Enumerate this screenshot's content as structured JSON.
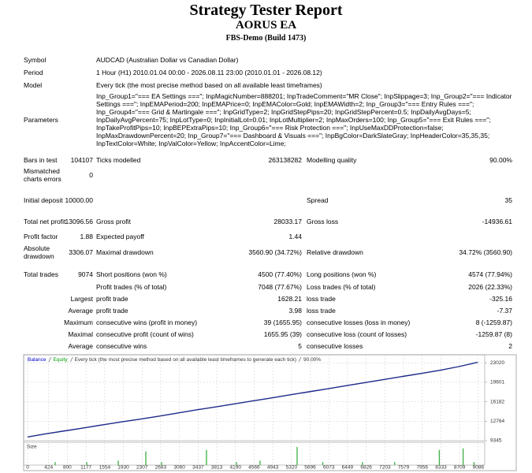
{
  "header": {
    "title": "Strategy Tester Report",
    "subtitle": "AORUS EA",
    "server": "FBS-Demo (Build 1473)"
  },
  "info": [
    {
      "label": "Symbol",
      "value": "AUDCAD (Australian Dollar vs Canadian Dollar)"
    },
    {
      "label": "Period",
      "value": "1 Hour (H1) 2010.01.04 00:00 - 2026.08.11 23:00 (2010.01.01 - 2026.08.12)"
    },
    {
      "label": "Model",
      "value": "Every tick (the most precise method based on all available least timeframes)"
    },
    {
      "label": "Parameters",
      "value": "Inp_Group1=\"=== EA Settings ===\"; InpMagicNumber=888201; InpTradeComment=\"MR Close\"; InpSlippage=3; Inp_Group2=\"=== Indicator Settings ===\"; InpEMAPeriod=200; InpEMAPrice=0; InpEMAColor=Gold; InpEMAWidth=2; Inp_Group3=\"=== Entry Rules ===\"; Inp_Group4=\"=== Grid & Martingale ===\"; InpGridType=2; InpGridStepPips=20; InpGridStepPercent=0.5; InpDailyAvgDays=5; InpDailyAvgPercent=75; InpLotType=0; InpInitialLot=0.01; InpLotMultiplier=2; InpMaxOrders=100; Inp_Group5=\"=== Exit Rules ===\"; InpTakeProfitPips=10; InpBEPExtraPips=10; Inp_Group6=\"=== Risk Protection ===\"; InpUseMaxDDProtection=false; InpMaxDrawdownPercent=20; Inp_Group7=\"=== Dashboard & Visuals ===\"; InpBgColor=DarkSlateGray; InpHeaderColor=35,35,35; InpTextColor=White; InpValColor=Yellow; InpAccentColor=Lime;"
    }
  ],
  "stats": [
    {
      "label1": "Bars in test",
      "value1": "104107",
      "label2": "Ticks modelled",
      "value2": "263138282",
      "label3": "Modelling quality",
      "value3": "90.00%"
    },
    {
      "label1": "Mismatched charts errors",
      "value1": "0"
    },
    {
      "label1": "Initial deposit",
      "value1": "10000.00",
      "label3": "Spread",
      "value3": "35"
    },
    {
      "label1": "Total net profit",
      "value1": "13096.56",
      "label2": "Gross profit",
      "value2": "28033.17",
      "label3": "Gross loss",
      "value3": "-14936.61"
    },
    {
      "label1": "Profit factor",
      "value1": "1.88",
      "label2": "Expected payoff",
      "value2": "1.44"
    },
    {
      "label1": "Absolute drawdown",
      "value1": "3306.07",
      "label2": "Maximal drawdown",
      "value2": "3560.90 (34.72%)",
      "label3": "Relative drawdown",
      "value3": "34.72% (3560.90)"
    },
    {
      "label1": "Total trades",
      "value1": "9074",
      "label2": "Short positions (won %)",
      "value2": "4500 (77.40%)",
      "label3": "Long positions (won %)",
      "value3": "4574 (77.94%)"
    },
    {
      "label2": "Profit trades (% of total)",
      "value2": "7048 (77.67%)",
      "label3": "Loss trades (% of total)",
      "value3": "2026 (22.33%)"
    },
    {
      "prefix": "Largest",
      "label2": "profit trade",
      "value2": "1628.21",
      "label3": "loss trade",
      "value3": "-325.16"
    },
    {
      "prefix": "Average",
      "label2": "profit trade",
      "value2": "3.98",
      "label3": "loss trade",
      "value3": "-7.37"
    },
    {
      "prefix": "Maximum",
      "label2": "consecutive wins (profit in money)",
      "value2": "39 (1655.95)",
      "label3": "consecutive losses (loss in money)",
      "value3": "8 (-1259.87)"
    },
    {
      "prefix": "Maximal",
      "label2": "consecutive profit (count of wins)",
      "value2": "1655.95 (39)",
      "label3": "consecutive loss (count of losses)",
      "value3": "-1259.87 (8)"
    },
    {
      "prefix": "Average",
      "label2": "consecutive wins",
      "value2": "5",
      "label3": "consecutive losses",
      "value3": "2"
    }
  ],
  "chart_data": {
    "type": "line",
    "legend": [
      "Balance",
      "Equity",
      "Every tick (the most precise method based on all available least timeframes to generate each tick)",
      "90.00%"
    ],
    "legend_colors": [
      "#0000cc",
      "#00a000",
      "#333333",
      "#333333"
    ],
    "x": [
      0,
      378,
      756,
      1134,
      1512,
      1890,
      2268,
      2646,
      3024,
      3402,
      3780,
      4158,
      4536,
      4914,
      5292,
      5670,
      6048,
      6426,
      6804,
      7182,
      7560,
      7938,
      8316,
      8694,
      9074
    ],
    "series": [
      {
        "name": "Balance",
        "color": "#1c2a8a",
        "values": [
          10000,
          10560,
          11080,
          11590,
          12120,
          12640,
          13130,
          13650,
          14200,
          14750,
          15250,
          15800,
          16320,
          16850,
          17400,
          17920,
          18450,
          19000,
          19550,
          20080,
          20620,
          21150,
          21700,
          22350,
          23097
        ]
      }
    ],
    "xlim": [
      -80,
      9215
    ],
    "ylim": [
      9345,
      24430
    ],
    "yticks": [
      23020,
      19601,
      16182,
      12764,
      9345
    ],
    "xticks": [
      0,
      424,
      800,
      1177,
      1554,
      1930,
      2307,
      2683,
      3060,
      3437,
      3813,
      4190,
      4566,
      4943,
      5320,
      5696,
      6073,
      6449,
      6826,
      7203,
      7579,
      7956,
      8333,
      8709,
      9086
    ],
    "grid": true,
    "size": {
      "label": "Size",
      "color": "#3cb043",
      "x": [
        556,
        1192,
        1827,
        2383,
        2700,
        3606,
        4210,
        4686,
        5433,
        5950,
        6750,
        7400,
        8300,
        8780,
        9000
      ],
      "values": [
        1,
        1,
        1.5,
        4.5,
        1,
        5,
        1,
        1.5,
        6,
        1,
        1,
        1,
        5,
        5.5,
        1
      ],
      "ylim": [
        0,
        7
      ]
    }
  }
}
